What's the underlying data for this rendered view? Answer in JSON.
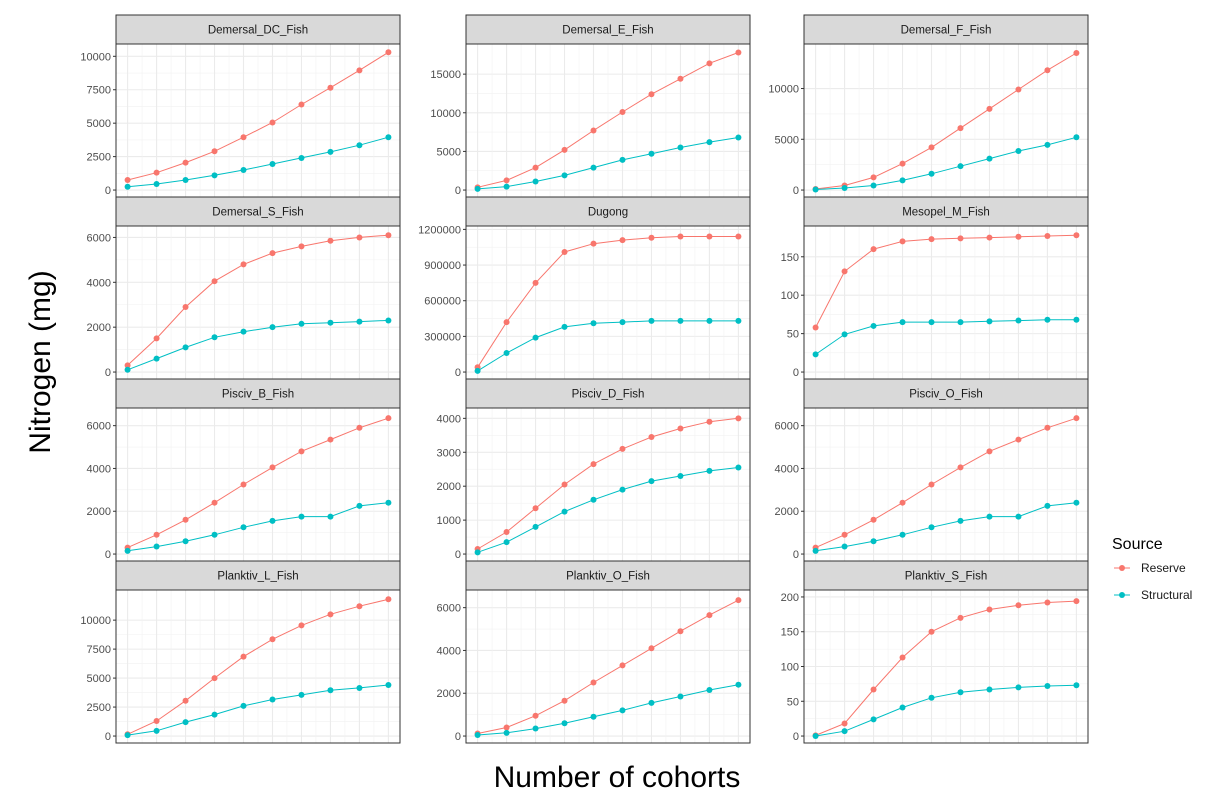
{
  "chart_data": {
    "type": "line",
    "x_axis_label": "Number of cohorts",
    "y_axis_label": "Nitrogen (mg)",
    "legend": {
      "title": "Source",
      "placement": "right",
      "entries": [
        {
          "name": "Reserve",
          "color": "#F8766D"
        },
        {
          "name": "Structural",
          "color": "#00BFC4"
        }
      ]
    },
    "grid": true,
    "x": [
      1,
      2,
      3,
      4,
      5,
      6,
      7,
      8,
      9,
      10
    ],
    "panels": [
      {
        "name": "Demersal_DC_Fish",
        "ylim": [
          0,
          10400
        ],
        "yticks": [
          0,
          2500,
          5000,
          7500,
          10000
        ],
        "series": [
          {
            "name": "Reserve",
            "values": [
              750,
              1300,
              2050,
              2900,
              3950,
              5050,
              6400,
              7650,
              8950,
              10300
            ]
          },
          {
            "name": "Structural",
            "values": [
              250,
              450,
              750,
              1100,
              1500,
              1950,
              2400,
              2850,
              3350,
              3950
            ]
          }
        ]
      },
      {
        "name": "Demersal_E_Fish",
        "ylim": [
          0,
          18000
        ],
        "yticks": [
          0,
          5000,
          10000,
          15000
        ],
        "series": [
          {
            "name": "Reserve",
            "values": [
              350,
              1250,
              2900,
              5200,
              7700,
              10100,
              12400,
              14400,
              16400,
              17800
            ]
          },
          {
            "name": "Structural",
            "values": [
              150,
              450,
              1100,
              1900,
              2900,
              3900,
              4700,
              5500,
              6200,
              6800
            ]
          }
        ]
      },
      {
        "name": "Demersal_F_Fish",
        "ylim": [
          0,
          13700
        ],
        "yticks": [
          0,
          5000,
          10000
        ],
        "series": [
          {
            "name": "Reserve",
            "values": [
              100,
              450,
              1250,
              2600,
              4200,
              6100,
              8000,
              9900,
              11800,
              13500
            ]
          },
          {
            "name": "Structural",
            "values": [
              50,
              200,
              450,
              950,
              1600,
              2350,
              3100,
              3850,
              4450,
              5200
            ]
          }
        ]
      },
      {
        "name": "Demersal_S_Fish",
        "ylim": [
          0,
          6200
        ],
        "yticks": [
          0,
          2000,
          4000,
          6000
        ],
        "series": [
          {
            "name": "Reserve",
            "values": [
              300,
              1500,
              2900,
              4050,
              4800,
              5300,
              5600,
              5850,
              6000,
              6100
            ]
          },
          {
            "name": "Structural",
            "values": [
              100,
              600,
              1100,
              1550,
              1800,
              2000,
              2150,
              2200,
              2250,
              2300
            ]
          }
        ]
      },
      {
        "name": "Dugong",
        "ylim": [
          0,
          1170000
        ],
        "yticks": [
          0,
          300000,
          600000,
          900000,
          1200000
        ],
        "series": [
          {
            "name": "Reserve",
            "values": [
              40000,
              420000,
              750000,
              1010000,
              1080000,
              1110000,
              1130000,
              1140000,
              1140000,
              1140000
            ]
          },
          {
            "name": "Structural",
            "values": [
              10000,
              160000,
              290000,
              380000,
              410000,
              420000,
              430000,
              430000,
              430000,
              430000
            ]
          }
        ]
      },
      {
        "name": "Mesopel_M_Fish",
        "ylim": [
          0,
          181
        ],
        "yticks": [
          0,
          50,
          100,
          150
        ],
        "series": [
          {
            "name": "Reserve",
            "values": [
              58,
              131,
              160,
              170,
              173,
              174,
              175,
              176,
              177,
              178
            ]
          },
          {
            "name": "Structural",
            "values": [
              23,
              49,
              60,
              65,
              65,
              65,
              66,
              67,
              68,
              68
            ]
          }
        ]
      },
      {
        "name": "Pisciv_B_Fish",
        "ylim": [
          0,
          6500
        ],
        "yticks": [
          0,
          2000,
          4000,
          6000
        ],
        "series": [
          {
            "name": "Reserve",
            "values": [
              300,
              900,
              1600,
              2400,
              3250,
              4050,
              4800,
              5350,
              5900,
              6350
            ]
          },
          {
            "name": "Structural",
            "values": [
              150,
              350,
              600,
              900,
              1250,
              1550,
              1750,
              1750,
              2250,
              2400
            ]
          }
        ]
      },
      {
        "name": "Pisciv_D_Fish",
        "ylim": [
          0,
          4100
        ],
        "yticks": [
          0,
          1000,
          2000,
          3000,
          4000
        ],
        "series": [
          {
            "name": "Reserve",
            "values": [
              150,
              650,
              1350,
              2050,
              2650,
              3100,
              3450,
              3700,
              3900,
              4000
            ]
          },
          {
            "name": "Structural",
            "values": [
              50,
              350,
              800,
              1250,
              1600,
              1900,
              2150,
              2300,
              2450,
              2550
            ]
          }
        ]
      },
      {
        "name": "Pisciv_O_Fish",
        "ylim": [
          0,
          6500
        ],
        "yticks": [
          0,
          2000,
          4000,
          6000
        ],
        "series": [
          {
            "name": "Reserve",
            "values": [
              300,
              900,
              1600,
              2400,
              3250,
              4050,
              4800,
              5350,
              5900,
              6350
            ]
          },
          {
            "name": "Structural",
            "values": [
              150,
              350,
              600,
              900,
              1250,
              1550,
              1750,
              1750,
              2250,
              2400
            ]
          }
        ]
      },
      {
        "name": "Planktiv_L_Fish",
        "ylim": [
          0,
          12000
        ],
        "yticks": [
          0,
          2500,
          5000,
          7500,
          10000
        ],
        "series": [
          {
            "name": "Reserve",
            "values": [
              150,
              1300,
              3050,
              5000,
              6850,
              8350,
              9550,
              10500,
              11200,
              11800
            ]
          },
          {
            "name": "Structural",
            "values": [
              80,
              450,
              1200,
              1850,
              2600,
              3150,
              3550,
              3950,
              4150,
              4400
            ]
          }
        ]
      },
      {
        "name": "Planktiv_O_Fish",
        "ylim": [
          0,
          6500
        ],
        "yticks": [
          0,
          2000,
          4000,
          6000
        ],
        "series": [
          {
            "name": "Reserve",
            "values": [
              120,
              400,
              950,
              1650,
              2500,
              3300,
              4100,
              4900,
              5650,
              6350
            ]
          },
          {
            "name": "Structural",
            "values": [
              50,
              150,
              350,
              600,
              900,
              1200,
              1550,
              1850,
              2150,
              2400
            ]
          }
        ]
      },
      {
        "name": "Planktiv_S_Fish",
        "ylim": [
          0,
          200
        ],
        "yticks": [
          0,
          50,
          100,
          150,
          200
        ],
        "series": [
          {
            "name": "Reserve",
            "values": [
              1,
              18,
              67,
              113,
              150,
              170,
              182,
              188,
              192,
              194
            ]
          },
          {
            "name": "Structural",
            "values": [
              0,
              7,
              24,
              41,
              55,
              63,
              67,
              70,
              72,
              73
            ]
          }
        ]
      }
    ]
  }
}
